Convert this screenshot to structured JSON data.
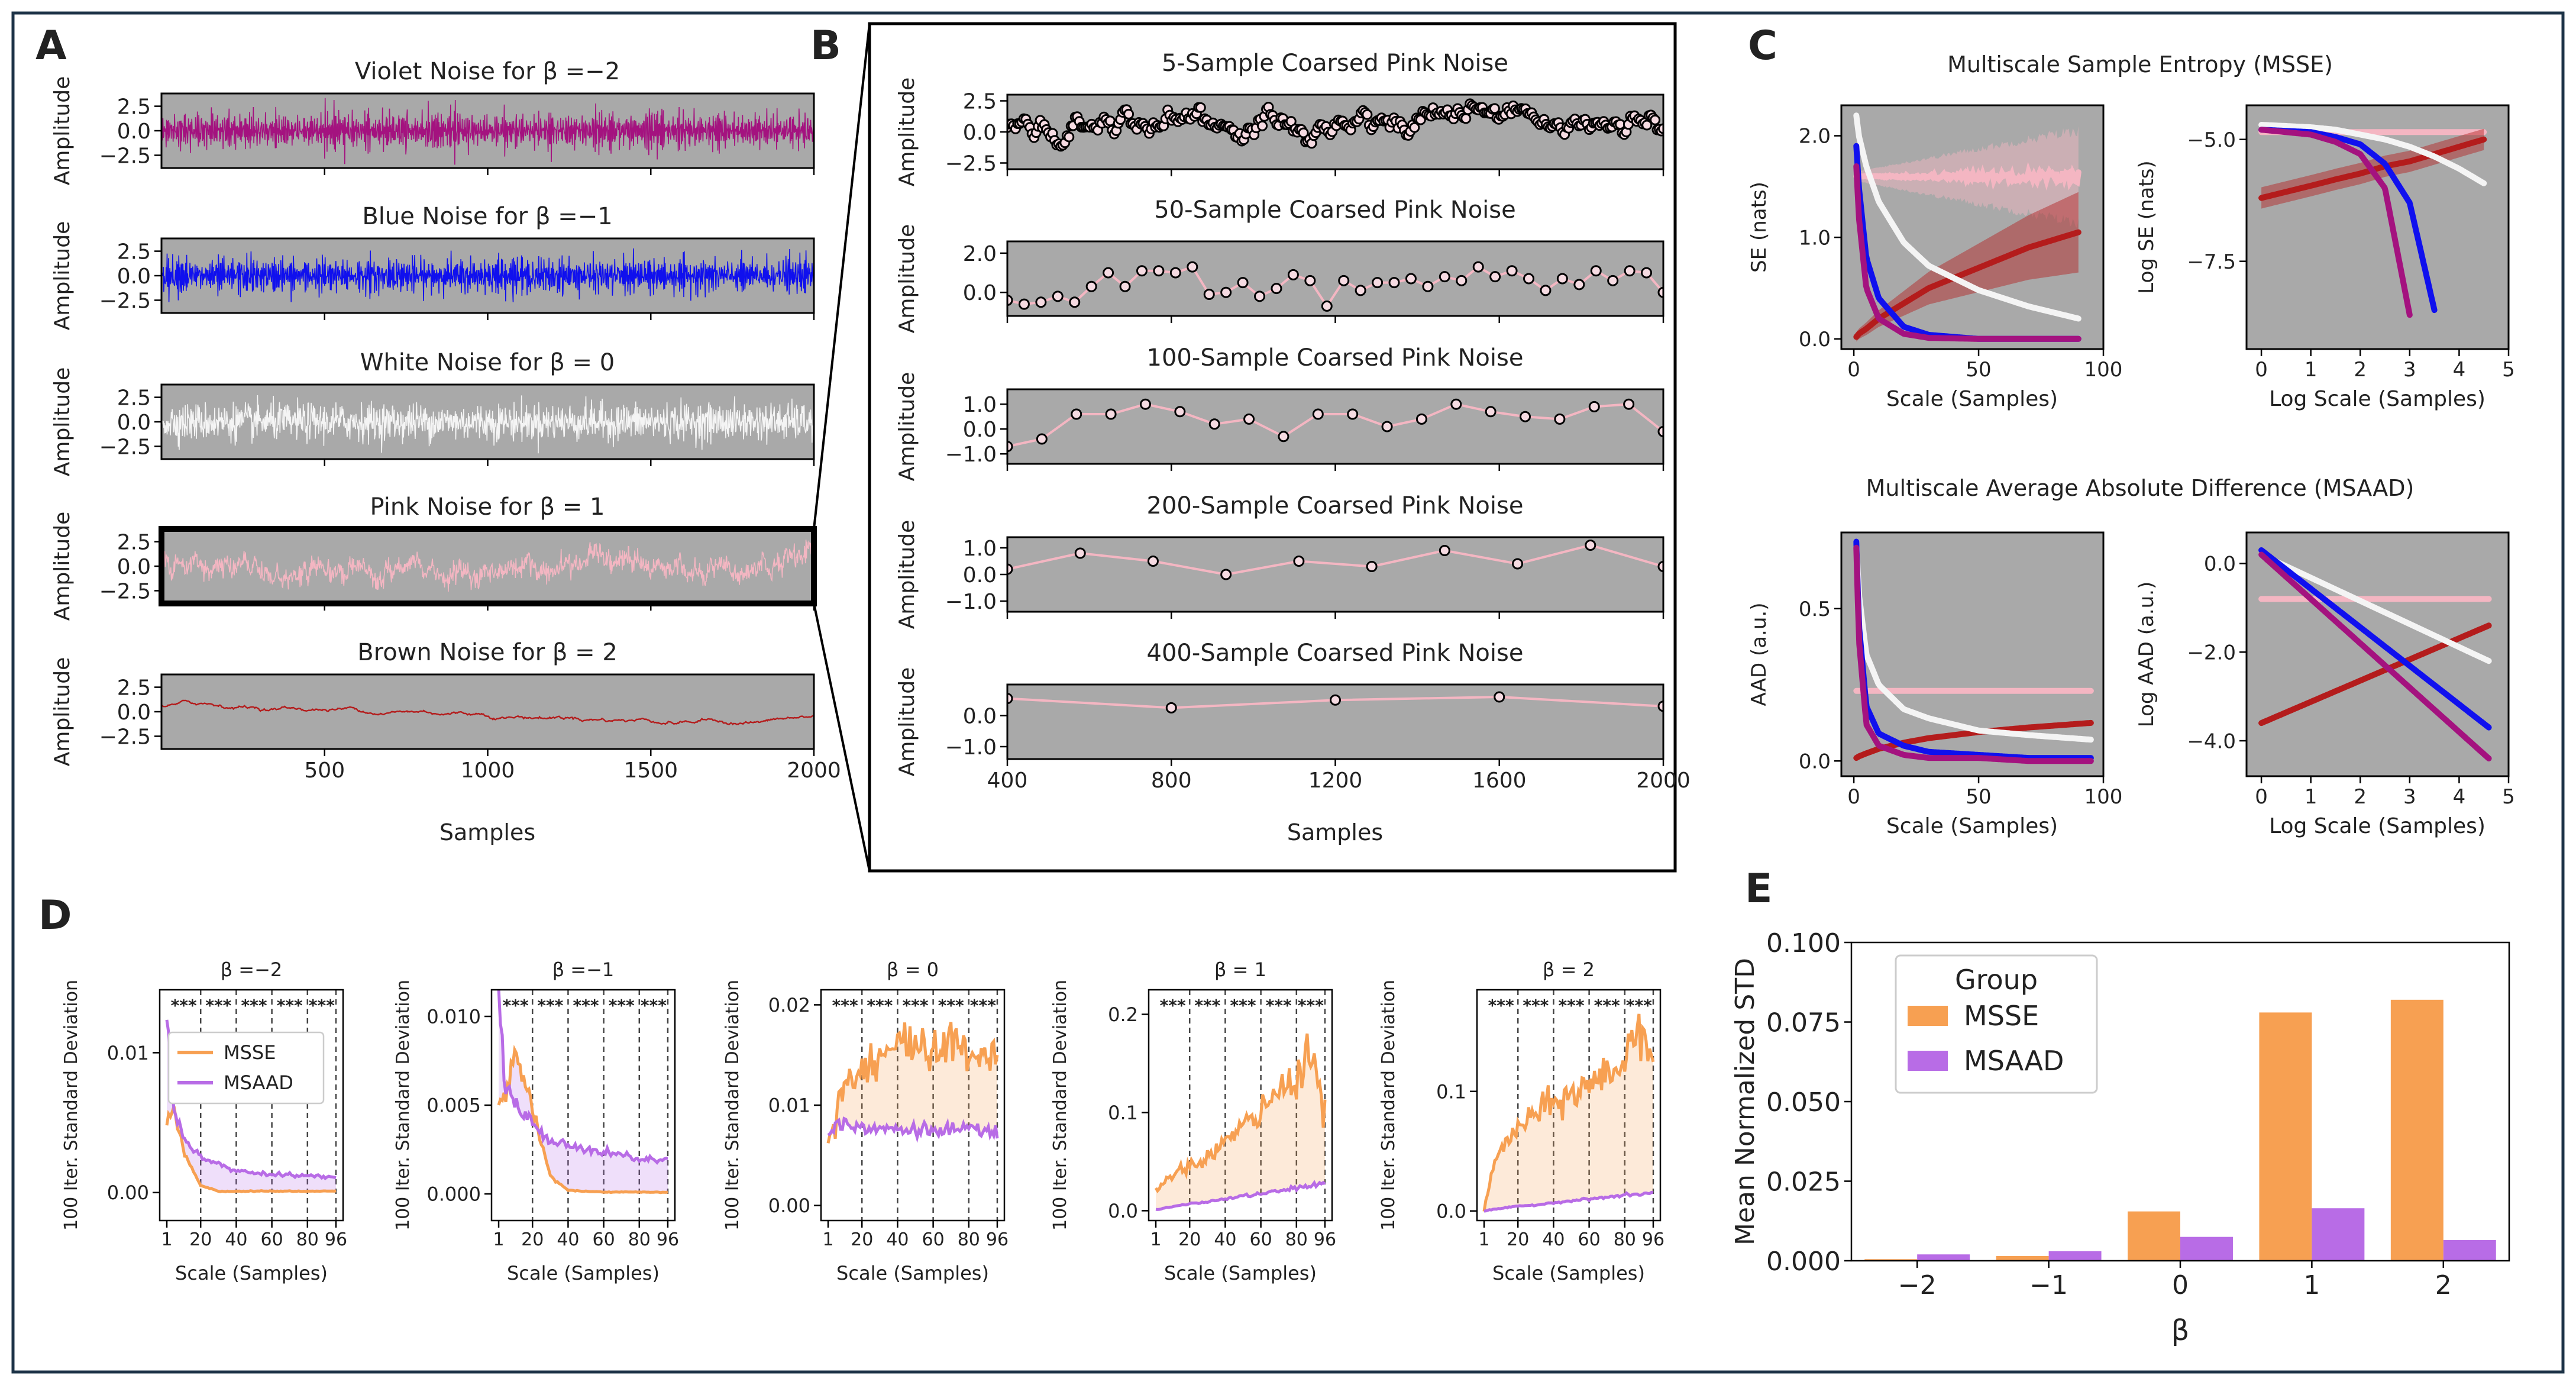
{
  "figure": {
    "colors": {
      "frame": "#1d3347",
      "plot_bg": "#a9a9a9",
      "violet": "#a4127f",
      "blue": "#1010ee",
      "white": "#f4f4f4",
      "pink": "#f4b6c2",
      "brown": "#b41c1c",
      "msse": "#f7a052",
      "msaad": "#b86ce6"
    }
  },
  "panelA": {
    "letter": "A",
    "titles": [
      "Violet Noise for β =−2",
      "Blue Noise for β =−1",
      "White Noise for β = 0",
      "Pink Noise for β = 1",
      "Brown Noise for β = 2"
    ],
    "ylabel": "Amplitude",
    "yticks": [
      "2.5",
      "0.0",
      "−2.5"
    ],
    "xticks": [
      "500",
      "1000",
      "1500",
      "2000"
    ],
    "xlabel": "Samples"
  },
  "panelB": {
    "letter": "B",
    "titles": [
      "5-Sample Coarsed Pink Noise",
      "50-Sample Coarsed Pink Noise",
      "100-Sample Coarsed Pink Noise",
      "200-Sample Coarsed Pink Noise",
      "400-Sample Coarsed Pink Noise"
    ],
    "ylabel": "Amplitude",
    "yticks": [
      [
        "2.5",
        "0.0",
        "−2.5"
      ],
      [
        "2.0",
        "0.0"
      ],
      [
        "1.0",
        "0.0",
        "−1.0"
      ],
      [
        "1.0",
        "0.0",
        "−1.0"
      ],
      [
        "0.0",
        "−1.0"
      ]
    ],
    "xticks": [
      "400",
      "800",
      "1200",
      "1600",
      "2000"
    ],
    "xlabel": "Samples"
  },
  "panelC": {
    "letter": "C",
    "msse_title": "Multiscale Sample Entropy (MSSE)",
    "msaad_title": "Multiscale Average Absolute Difference (MSAAD)",
    "se": {
      "ylabel": "SE (nats)",
      "xlabel": "Scale (Samples)",
      "yticks": [
        "2.0",
        "1.0",
        "0.0"
      ],
      "xticks": [
        "0",
        "50",
        "100"
      ]
    },
    "logse": {
      "ylabel": "Log SE (nats)",
      "xlabel": "Log Scale (Samples)",
      "yticks": [
        "−5.0",
        "−7.5"
      ],
      "xticks": [
        "0",
        "1",
        "2",
        "3",
        "4",
        "5"
      ]
    },
    "aad": {
      "ylabel": "AAD (a.u.)",
      "xlabel": "Scale (Samples)",
      "yticks": [
        "0.5",
        "0.0"
      ],
      "xticks": [
        "0",
        "50",
        "100"
      ]
    },
    "logaad": {
      "ylabel": "Log AAD (a.u.)",
      "xlabel": "Log Scale (Samples)",
      "yticks": [
        "0.0",
        "−2.0",
        "−4.0"
      ],
      "xticks": [
        "0",
        "1",
        "2",
        "3",
        "4",
        "5"
      ]
    }
  },
  "panelD": {
    "letter": "D",
    "titles": [
      "β =−2",
      "β =−1",
      "β = 0",
      "β = 1",
      "β = 2"
    ],
    "ylabel": "100 Iter. Standard Deviation",
    "xlabel": "Scale (Samples)",
    "xticks": [
      "1",
      "20",
      "40",
      "60",
      "80",
      "96"
    ],
    "yticks": [
      [
        "0.01",
        "0.00"
      ],
      [
        "0.010",
        "0.005",
        "0.000"
      ],
      [
        "0.02",
        "0.01",
        "0.00"
      ],
      [
        "0.2",
        "0.1",
        "0.0"
      ],
      [
        "0.1",
        "0.0"
      ]
    ],
    "sig": "***",
    "legend": [
      "MSSE",
      "MSAAD"
    ]
  },
  "panelE": {
    "letter": "E",
    "ylabel": "Mean Normalized STD",
    "xlabel": "β",
    "yticks": [
      "0.100",
      "0.075",
      "0.050",
      "0.025",
      "0.000"
    ],
    "legend_title": "Group",
    "legend": [
      "MSSE",
      "MSAAD"
    ]
  },
  "chart_data": [
    {
      "type": "line",
      "title": "Violet Noise for β =−2",
      "xlabel": "Samples",
      "ylabel": "Amplitude",
      "xlim": [
        0,
        2000
      ],
      "ylim": [
        -3.8,
        3.8
      ],
      "series": [
        {
          "name": "violet noise",
          "beta": -2,
          "color": "#a4127f"
        }
      ]
    },
    {
      "type": "line",
      "title": "Blue Noise for β =−1",
      "xlabel": "Samples",
      "ylabel": "Amplitude",
      "xlim": [
        0,
        2000
      ],
      "ylim": [
        -3.8,
        3.8
      ],
      "series": [
        {
          "name": "blue noise",
          "beta": -1,
          "color": "#1010ee"
        }
      ]
    },
    {
      "type": "line",
      "title": "White Noise for β = 0",
      "xlabel": "Samples",
      "ylabel": "Amplitude",
      "xlim": [
        0,
        2000
      ],
      "ylim": [
        -3.8,
        3.8
      ],
      "series": [
        {
          "name": "white noise",
          "beta": 0,
          "color": "#f4f4f4"
        }
      ]
    },
    {
      "type": "line",
      "title": "Pink Noise for β = 1",
      "xlabel": "Samples",
      "ylabel": "Amplitude",
      "xlim": [
        0,
        2000
      ],
      "ylim": [
        -3.8,
        3.8
      ],
      "series": [
        {
          "name": "pink noise",
          "beta": 1,
          "color": "#f4b6c2"
        }
      ]
    },
    {
      "type": "line",
      "title": "Brown Noise for β = 2",
      "xlabel": "Samples",
      "ylabel": "Amplitude",
      "xlim": [
        0,
        2000
      ],
      "ylim": [
        -3.8,
        3.8
      ],
      "series": [
        {
          "name": "brown noise",
          "beta": 2,
          "color": "#b41c1c"
        }
      ]
    },
    {
      "type": "line",
      "title": "5-Sample Coarsed Pink Noise",
      "xlabel": "Samples",
      "ylabel": "Amplitude",
      "xlim": [
        400,
        2000
      ],
      "ylim": [
        -3,
        3
      ],
      "coarse": 5
    },
    {
      "type": "line",
      "title": "50-Sample Coarsed Pink Noise",
      "xlabel": "Samples",
      "ylabel": "Amplitude",
      "xlim": [
        400,
        2000
      ],
      "ylim": [
        -1.2,
        2.6
      ],
      "coarse": 50,
      "values": [
        -0.4,
        -0.6,
        -0.5,
        -0.2,
        -0.5,
        0.3,
        1.0,
        0.3,
        1.1,
        1.1,
        1.0,
        1.3,
        -0.1,
        0.0,
        0.5,
        -0.2,
        0.2,
        0.9,
        0.6,
        -0.7,
        0.6,
        0.1,
        0.5,
        0.5,
        0.7,
        0.3,
        0.8,
        0.6,
        1.3,
        0.8,
        1.1,
        0.7,
        0.1,
        0.7,
        0.4,
        1.1,
        0.6,
        1.1,
        1.0,
        0.0
      ]
    },
    {
      "type": "line",
      "title": "100-Sample Coarsed Pink Noise",
      "xlabel": "Samples",
      "ylabel": "Amplitude",
      "xlim": [
        400,
        2000
      ],
      "ylim": [
        -1.4,
        1.6
      ],
      "coarse": 100,
      "values": [
        -0.7,
        -0.4,
        0.6,
        0.6,
        1.0,
        0.7,
        0.2,
        0.4,
        -0.3,
        0.6,
        0.6,
        0.1,
        0.4,
        1.0,
        0.7,
        0.5,
        0.4,
        0.9,
        1.0,
        -0.1
      ]
    },
    {
      "type": "line",
      "title": "200-Sample Coarsed Pink Noise",
      "xlabel": "Samples",
      "ylabel": "Amplitude",
      "xlim": [
        400,
        2000
      ],
      "ylim": [
        -1.4,
        1.4
      ],
      "coarse": 200,
      "values": [
        0.2,
        0.8,
        0.5,
        0.0,
        0.5,
        0.3,
        0.9,
        0.4,
        1.1,
        0.3
      ]
    },
    {
      "type": "line",
      "title": "400-Sample Coarsed Pink Noise",
      "xlabel": "Samples",
      "ylabel": "Amplitude",
      "xlim": [
        400,
        2000
      ],
      "ylim": [
        -1.4,
        1.0
      ],
      "coarse": 400,
      "x": [
        400,
        800,
        1200,
        1600,
        2000
      ],
      "values": [
        0.55,
        0.25,
        0.5,
        0.6,
        0.3
      ]
    },
    {
      "type": "line",
      "title": "Multiscale Sample Entropy (MSSE)",
      "xlabel": "Scale (Samples)",
      "ylabel": "SE (nats)",
      "xlim": [
        -5,
        100
      ],
      "ylim": [
        -0.1,
        2.3
      ],
      "x": [
        1,
        2,
        5,
        10,
        20,
        30,
        50,
        70,
        90
      ],
      "series": [
        {
          "name": "violet",
          "values": [
            1.7,
            1.2,
            0.5,
            0.2,
            0.05,
            0.01,
            0.0,
            0.0,
            0.0
          ]
        },
        {
          "name": "blue",
          "values": [
            1.9,
            1.5,
            0.8,
            0.4,
            0.12,
            0.04,
            0.0,
            0.0,
            0.0
          ]
        },
        {
          "name": "white",
          "values": [
            2.2,
            2.0,
            1.7,
            1.35,
            0.95,
            0.72,
            0.48,
            0.32,
            0.2
          ]
        },
        {
          "name": "pink",
          "values": [
            1.6,
            1.6,
            1.6,
            1.6,
            1.6,
            1.6,
            1.6,
            1.6,
            1.6
          ]
        },
        {
          "name": "brown",
          "values": [
            0.02,
            0.05,
            0.1,
            0.2,
            0.35,
            0.5,
            0.7,
            0.9,
            1.05
          ]
        }
      ]
    },
    {
      "type": "line",
      "title": "Multiscale Sample Entropy (MSSE) log-log",
      "xlabel": "Log Scale (Samples)",
      "ylabel": "Log SE (nats)",
      "xlim": [
        -0.3,
        5
      ],
      "ylim": [
        -9.3,
        -4.3
      ],
      "x": [
        0,
        1,
        1.5,
        2,
        2.5,
        3,
        3.5,
        4,
        4.5
      ],
      "series": [
        {
          "name": "violet",
          "values": [
            -4.8,
            -4.9,
            -5.05,
            -5.3,
            -6.0,
            -8.6,
            null,
            null,
            null
          ]
        },
        {
          "name": "blue",
          "values": [
            -4.8,
            -4.85,
            -4.95,
            -5.1,
            -5.5,
            -6.3,
            -8.5,
            null,
            null
          ]
        },
        {
          "name": "white",
          "values": [
            -4.7,
            -4.75,
            -4.8,
            -4.9,
            -5.0,
            -5.15,
            -5.35,
            -5.6,
            -5.9
          ]
        },
        {
          "name": "pink",
          "values": [
            -4.85,
            -4.85,
            -4.85,
            -4.85,
            -4.85,
            -4.85,
            -4.85,
            -4.85,
            -4.85
          ]
        },
        {
          "name": "brown",
          "values": [
            -6.2,
            -5.95,
            -5.82,
            -5.7,
            -5.55,
            -5.45,
            -5.3,
            -5.15,
            -5.0
          ]
        }
      ]
    },
    {
      "type": "line",
      "title": "Multiscale Average Absolute Difference (MSAAD)",
      "xlabel": "Scale (Samples)",
      "ylabel": "AAD (a.u.)",
      "xlim": [
        -5,
        100
      ],
      "ylim": [
        -0.05,
        0.75
      ],
      "x": [
        1,
        2,
        5,
        10,
        20,
        30,
        50,
        70,
        95
      ],
      "series": [
        {
          "name": "violet",
          "values": [
            0.7,
            0.4,
            0.12,
            0.05,
            0.02,
            0.01,
            0.01,
            0.0,
            0.0
          ]
        },
        {
          "name": "blue",
          "values": [
            0.72,
            0.45,
            0.18,
            0.09,
            0.05,
            0.03,
            0.02,
            0.01,
            0.01
          ]
        },
        {
          "name": "white",
          "values": [
            0.72,
            0.55,
            0.35,
            0.25,
            0.17,
            0.14,
            0.1,
            0.085,
            0.07
          ]
        },
        {
          "name": "pink",
          "values": [
            0.23,
            0.23,
            0.23,
            0.23,
            0.23,
            0.23,
            0.23,
            0.23,
            0.23
          ]
        },
        {
          "name": "brown",
          "values": [
            0.01,
            0.015,
            0.025,
            0.04,
            0.06,
            0.075,
            0.095,
            0.11,
            0.125
          ]
        }
      ]
    },
    {
      "type": "line",
      "title": "Multiscale Average Absolute Difference (MSAAD) log-log",
      "xlabel": "Log Scale (Samples)",
      "ylabel": "Log AAD (a.u.)",
      "xlim": [
        -0.3,
        5
      ],
      "ylim": [
        -4.8,
        0.7
      ],
      "x": [
        0,
        4.6
      ],
      "series": [
        {
          "name": "violet",
          "values": [
            0.2,
            -4.4
          ]
        },
        {
          "name": "blue",
          "values": [
            0.3,
            -3.7
          ]
        },
        {
          "name": "white",
          "values": [
            0.2,
            -2.2
          ]
        },
        {
          "name": "pink",
          "values": [
            -0.8,
            -0.8
          ]
        },
        {
          "name": "brown",
          "values": [
            -3.6,
            -1.4
          ]
        }
      ]
    },
    {
      "type": "line",
      "title": "β =−2",
      "xlabel": "Scale (Samples)",
      "ylabel": "100 Iter. Standard Deviation",
      "xlim": [
        -3,
        100
      ],
      "ylim": [
        -0.002,
        0.0145
      ],
      "x": [
        1,
        5,
        10,
        20,
        30,
        40,
        60,
        80,
        96
      ],
      "series": [
        {
          "name": "MSSE",
          "values": [
            0.005,
            0.006,
            0.003,
            0.0005,
            0.0001,
            0.0001,
            0.0001,
            0.0001,
            0.0001
          ]
        },
        {
          "name": "MSAAD",
          "values": [
            0.013,
            0.006,
            0.004,
            0.0025,
            0.002,
            0.0016,
            0.0013,
            0.0012,
            0.0011
          ]
        }
      ],
      "significance": "***"
    },
    {
      "type": "line",
      "title": "β =−1",
      "xlabel": "Scale (Samples)",
      "ylabel": "100 Iter. Standard Deviation",
      "xlim": [
        -3,
        100
      ],
      "ylim": [
        -0.0015,
        0.0115
      ],
      "x": [
        1,
        5,
        10,
        20,
        30,
        40,
        60,
        80,
        96
      ],
      "series": [
        {
          "name": "MSSE",
          "values": [
            0.005,
            0.0055,
            0.008,
            0.005,
            0.001,
            0.0002,
            0.0001,
            0.0001,
            0.0001
          ]
        },
        {
          "name": "MSAAD",
          "values": [
            0.011,
            0.006,
            0.005,
            0.004,
            0.003,
            0.0028,
            0.0024,
            0.002,
            0.0019
          ]
        }
      ],
      "significance": "***"
    },
    {
      "type": "line",
      "title": "β = 0",
      "xlabel": "Scale (Samples)",
      "ylabel": "100 Iter. Standard Deviation",
      "xlim": [
        -3,
        100
      ],
      "ylim": [
        -0.0015,
        0.0215
      ],
      "x": [
        1,
        5,
        10,
        20,
        30,
        40,
        60,
        80,
        96
      ],
      "series": [
        {
          "name": "MSSE",
          "values": [
            0.007,
            0.009,
            0.012,
            0.014,
            0.015,
            0.016,
            0.016,
            0.0155,
            0.015
          ]
        },
        {
          "name": "MSAAD",
          "values": [
            0.007,
            0.008,
            0.0082,
            0.008,
            0.0078,
            0.0076,
            0.0075,
            0.0075,
            0.0074
          ]
        }
      ],
      "significance": "***"
    },
    {
      "type": "line",
      "title": "β = 1",
      "xlabel": "Scale (Samples)",
      "ylabel": "100 Iter. Standard Deviation",
      "xlim": [
        -3,
        100
      ],
      "ylim": [
        -0.01,
        0.225
      ],
      "x": [
        1,
        10,
        20,
        30,
        40,
        50,
        60,
        70,
        80,
        88,
        96
      ],
      "series": [
        {
          "name": "MSSE",
          "values": [
            0.02,
            0.035,
            0.045,
            0.055,
            0.07,
            0.085,
            0.1,
            0.12,
            0.14,
            0.165,
            0.1
          ]
        },
        {
          "name": "MSAAD",
          "values": [
            0.001,
            0.004,
            0.007,
            0.009,
            0.012,
            0.015,
            0.017,
            0.02,
            0.023,
            0.026,
            0.028
          ]
        }
      ],
      "significance": "***"
    },
    {
      "type": "line",
      "title": "β = 2",
      "xlabel": "Scale (Samples)",
      "ylabel": "100 Iter. Standard Deviation",
      "xlim": [
        -3,
        100
      ],
      "ylim": [
        -0.008,
        0.185
      ],
      "x": [
        1,
        5,
        10,
        20,
        30,
        40,
        60,
        80,
        88,
        96
      ],
      "series": [
        {
          "name": "MSSE",
          "values": [
            0.0,
            0.03,
            0.05,
            0.07,
            0.08,
            0.09,
            0.105,
            0.125,
            0.16,
            0.13
          ]
        },
        {
          "name": "MSAAD",
          "values": [
            0.0,
            0.001,
            0.002,
            0.004,
            0.005,
            0.007,
            0.01,
            0.013,
            0.014,
            0.015
          ]
        }
      ],
      "significance": "***"
    },
    {
      "type": "bar",
      "title": "",
      "xlabel": "β",
      "ylabel": "Mean Normalized STD",
      "ylim": [
        0,
        0.1
      ],
      "categories": [
        "−2",
        "−1",
        "0",
        "1",
        "2"
      ],
      "series": [
        {
          "name": "MSSE",
          "values": [
            0.0005,
            0.0015,
            0.0155,
            0.078,
            0.082
          ]
        },
        {
          "name": "MSAAD",
          "values": [
            0.002,
            0.003,
            0.0075,
            0.0165,
            0.0065
          ]
        }
      ],
      "legend_title": "Group",
      "legend_position": "upper-left"
    }
  ]
}
